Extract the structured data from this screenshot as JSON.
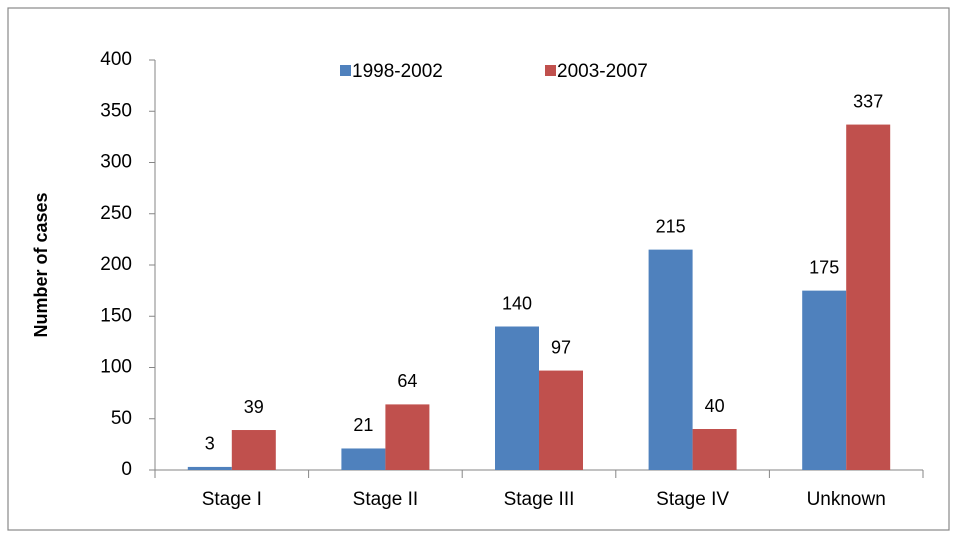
{
  "chart_data": {
    "type": "bar",
    "y_label": "Number of cases",
    "categories": [
      "Stage I",
      "Stage II",
      "Stage III",
      "Stage IV",
      "Unknown"
    ],
    "series": [
      {
        "name": "1998-2002",
        "color": "#4f81bd",
        "values": [
          3,
          21,
          140,
          215,
          175
        ]
      },
      {
        "name": "2003-2007",
        "color": "#c0504d",
        "values": [
          39,
          64,
          97,
          40,
          337
        ]
      }
    ],
    "ylim": [
      0,
      400
    ],
    "yticks": [
      0,
      50,
      100,
      150,
      200,
      250,
      300,
      350,
      400
    ],
    "grid": false,
    "legend": "top"
  }
}
